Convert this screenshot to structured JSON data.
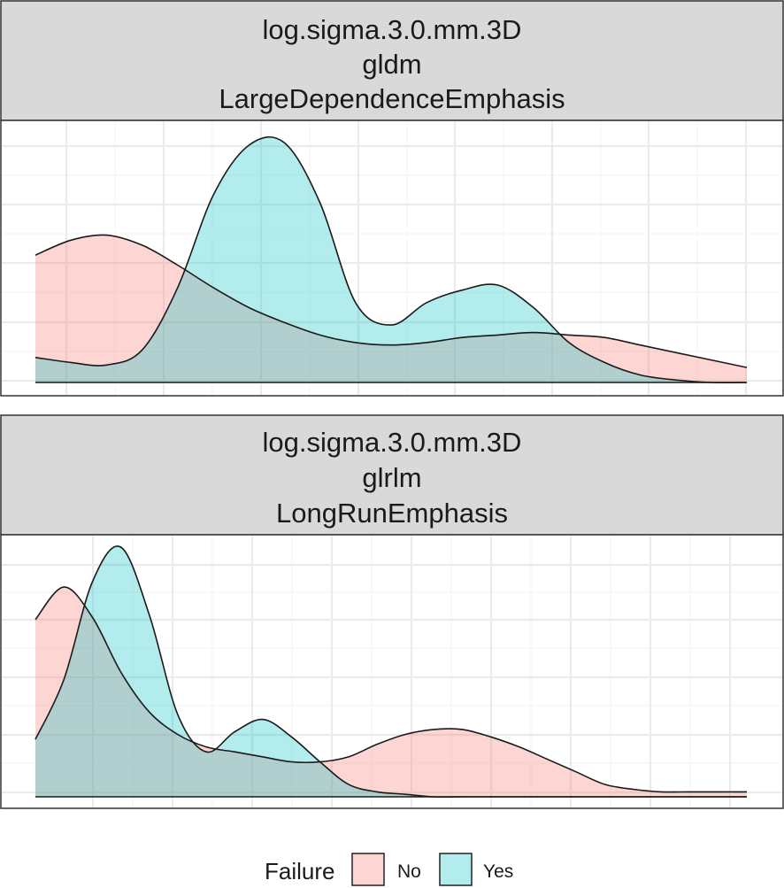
{
  "chart_data": [
    {
      "type": "area",
      "strip": [
        "log.sigma.3.0.mm.3D",
        "gldm",
        "LargeDependenceEmphasis"
      ],
      "title": "",
      "xlabel": "",
      "ylabel": "",
      "x_ticks_shown": false,
      "y_ticks_shown": false,
      "grid": true,
      "xlim": [
        0,
        1
      ],
      "ylim": [
        0,
        1
      ],
      "x": [
        0,
        0.05,
        0.1,
        0.15,
        0.2,
        0.25,
        0.3,
        0.35,
        0.4,
        0.45,
        0.5,
        0.55,
        0.6,
        0.65,
        0.7,
        0.75,
        0.8,
        0.85,
        0.9,
        0.95,
        1.0
      ],
      "series": [
        {
          "name": "No",
          "values": [
            0.51,
            0.57,
            0.59,
            0.55,
            0.47,
            0.38,
            0.3,
            0.24,
            0.19,
            0.16,
            0.15,
            0.16,
            0.18,
            0.19,
            0.2,
            0.19,
            0.18,
            0.15,
            0.12,
            0.09,
            0.06
          ]
        },
        {
          "name": "Yes",
          "values": [
            0.1,
            0.08,
            0.07,
            0.13,
            0.38,
            0.75,
            0.95,
            0.96,
            0.72,
            0.32,
            0.23,
            0.32,
            0.37,
            0.39,
            0.3,
            0.16,
            0.08,
            0.03,
            0.01,
            0.0,
            0.0
          ]
        }
      ]
    },
    {
      "type": "area",
      "strip": [
        "log.sigma.3.0.mm.3D",
        "glrlm",
        "LongRunEmphasis"
      ],
      "title": "",
      "xlabel": "",
      "ylabel": "",
      "x_ticks_shown": false,
      "y_ticks_shown": false,
      "grid": true,
      "xlim": [
        0,
        1
      ],
      "ylim": [
        0,
        1
      ],
      "x": [
        0,
        0.04,
        0.08,
        0.12,
        0.16,
        0.2,
        0.24,
        0.28,
        0.32,
        0.36,
        0.4,
        0.44,
        0.48,
        0.52,
        0.56,
        0.6,
        0.64,
        0.68,
        0.72,
        0.76,
        0.8,
        0.84,
        0.88,
        0.92,
        0.96,
        1.0
      ],
      "series": [
        {
          "name": "No",
          "values": [
            0.71,
            0.84,
            0.72,
            0.5,
            0.34,
            0.25,
            0.2,
            0.18,
            0.16,
            0.14,
            0.14,
            0.16,
            0.21,
            0.25,
            0.27,
            0.27,
            0.24,
            0.2,
            0.15,
            0.1,
            0.05,
            0.03,
            0.02,
            0.02,
            0.02,
            0.02
          ]
        },
        {
          "name": "Yes",
          "values": [
            0.23,
            0.47,
            0.86,
            1.0,
            0.73,
            0.33,
            0.18,
            0.26,
            0.31,
            0.24,
            0.14,
            0.05,
            0.02,
            0.01,
            0.0,
            0.0,
            0.0,
            0.0,
            0.0,
            0.0,
            0.0,
            0.0,
            0.0,
            0.0,
            0.0,
            0.0
          ]
        }
      ]
    }
  ],
  "legend": {
    "title": "Failure",
    "placement": "bottom",
    "items": [
      {
        "label": "No",
        "color": "#f8766d"
      },
      {
        "label": "Yes",
        "color": "#00bfc4"
      }
    ]
  },
  "colors": {
    "No": "#f8766d",
    "Yes": "#00bfc4",
    "strip_bg": "#d9d9d9",
    "grid_major": "#ebebeb",
    "grid_minor": "#f5f5f5",
    "panel_border": "#333333"
  },
  "fill_alpha": 0.3
}
